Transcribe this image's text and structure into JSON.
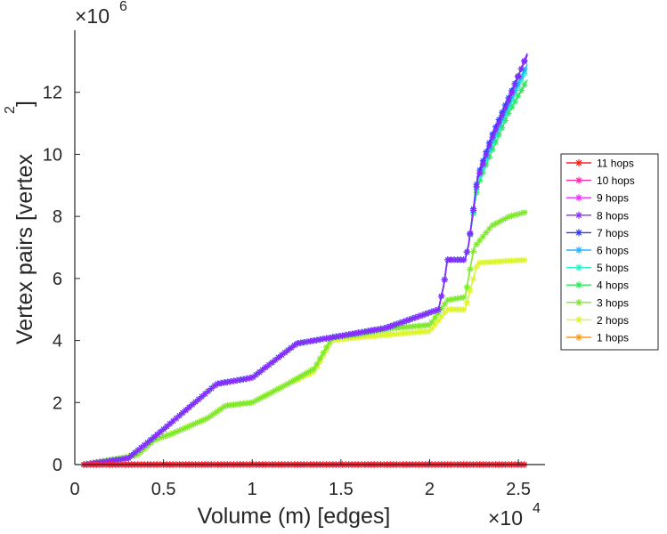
{
  "chart_data": {
    "type": "line",
    "xlabel": "Volume (m) [edges]",
    "ylabel_main": "Vertex pairs [vertex",
    "ylabel_sup": "2",
    "ylabel_close": "]",
    "x_multiplier": "×10",
    "x_multiplier_exp": "4",
    "y_multiplier": "×10",
    "y_multiplier_exp": "6",
    "xlim": [
      0,
      2.65
    ],
    "ylim": [
      0,
      14
    ],
    "xticks": [
      0,
      0.5,
      1,
      1.5,
      2,
      2.5
    ],
    "xtick_labels": [
      "0",
      "0.5",
      "1",
      "1.5",
      "2",
      "2.5"
    ],
    "yticks": [
      0,
      2,
      4,
      6,
      8,
      10,
      12
    ],
    "ytick_labels": [
      "0",
      "2",
      "4",
      "6",
      "8",
      "10",
      "12"
    ],
    "series": [
      {
        "name": "11 hops",
        "color": "#ff1f1f",
        "points": [
          [
            0.05,
            0
          ],
          [
            2.55,
            0
          ]
        ]
      },
      {
        "name": "10 hops",
        "color": "#ff2da6",
        "points": [
          [
            0.05,
            0
          ],
          [
            2.55,
            0
          ]
        ]
      },
      {
        "name": "9 hops",
        "color": "#ee2bff",
        "points": [
          [
            0.05,
            0
          ],
          [
            2.55,
            0
          ]
        ]
      },
      {
        "name": "8 hops",
        "color": "#8a2bff",
        "points": [
          [
            0.05,
            0
          ],
          [
            0.3,
            0.2
          ],
          [
            0.45,
            0.9
          ],
          [
            0.8,
            2.6
          ],
          [
            1.0,
            2.8
          ],
          [
            1.25,
            3.9
          ],
          [
            1.45,
            4.1
          ],
          [
            1.75,
            4.4
          ],
          [
            1.95,
            4.8
          ],
          [
            2.05,
            5.0
          ],
          [
            2.08,
            5.8
          ],
          [
            2.1,
            6.6
          ],
          [
            2.2,
            6.6
          ],
          [
            2.22,
            7.1
          ],
          [
            2.27,
            9.2
          ],
          [
            2.35,
            10.5
          ],
          [
            2.45,
            11.8
          ],
          [
            2.55,
            13.25
          ]
        ]
      },
      {
        "name": "7 hops",
        "color": "#2b3bff",
        "points": [
          [
            0.05,
            0
          ],
          [
            0.3,
            0.2
          ],
          [
            0.45,
            0.9
          ],
          [
            0.8,
            2.6
          ],
          [
            1.0,
            2.8
          ],
          [
            1.25,
            3.9
          ],
          [
            1.45,
            4.1
          ],
          [
            1.75,
            4.4
          ],
          [
            1.95,
            4.8
          ],
          [
            2.05,
            5.0
          ],
          [
            2.08,
            5.8
          ],
          [
            2.1,
            6.6
          ],
          [
            2.2,
            6.6
          ],
          [
            2.22,
            7.1
          ],
          [
            2.27,
            9.3
          ],
          [
            2.35,
            10.6
          ],
          [
            2.45,
            11.9
          ],
          [
            2.55,
            13.2
          ]
        ]
      },
      {
        "name": "6 hops",
        "color": "#2bb3ff",
        "points": [
          [
            0.05,
            0
          ],
          [
            0.3,
            0.2
          ],
          [
            0.45,
            0.9
          ],
          [
            0.8,
            2.6
          ],
          [
            1.0,
            2.8
          ],
          [
            1.25,
            3.9
          ],
          [
            1.45,
            4.1
          ],
          [
            1.75,
            4.4
          ],
          [
            1.95,
            4.8
          ],
          [
            2.05,
            5.0
          ],
          [
            2.08,
            5.8
          ],
          [
            2.1,
            6.6
          ],
          [
            2.2,
            6.6
          ],
          [
            2.22,
            7.1
          ],
          [
            2.27,
            9.2
          ],
          [
            2.35,
            10.4
          ],
          [
            2.45,
            11.7
          ],
          [
            2.55,
            12.9
          ]
        ]
      },
      {
        "name": "5 hops",
        "color": "#2bf2c4",
        "points": [
          [
            0.05,
            0
          ],
          [
            0.3,
            0.2
          ],
          [
            0.45,
            0.9
          ],
          [
            0.8,
            2.6
          ],
          [
            1.0,
            2.8
          ],
          [
            1.25,
            3.9
          ],
          [
            1.45,
            4.1
          ],
          [
            1.75,
            4.4
          ],
          [
            1.95,
            4.8
          ],
          [
            2.05,
            5.0
          ],
          [
            2.08,
            5.8
          ],
          [
            2.1,
            6.6
          ],
          [
            2.2,
            6.6
          ],
          [
            2.22,
            7.1
          ],
          [
            2.27,
            9.1
          ],
          [
            2.35,
            10.3
          ],
          [
            2.45,
            11.6
          ],
          [
            2.55,
            12.8
          ]
        ]
      },
      {
        "name": "4 hops",
        "color": "#2ee85a",
        "points": [
          [
            0.05,
            0
          ],
          [
            0.3,
            0.2
          ],
          [
            0.45,
            0.9
          ],
          [
            0.8,
            2.6
          ],
          [
            1.0,
            2.8
          ],
          [
            1.25,
            3.9
          ],
          [
            1.45,
            4.1
          ],
          [
            1.75,
            4.4
          ],
          [
            1.95,
            4.8
          ],
          [
            2.05,
            5.0
          ],
          [
            2.08,
            5.8
          ],
          [
            2.1,
            6.6
          ],
          [
            2.2,
            6.6
          ],
          [
            2.22,
            7.1
          ],
          [
            2.27,
            9.0
          ],
          [
            2.35,
            10.1
          ],
          [
            2.45,
            11.4
          ],
          [
            2.55,
            12.4
          ]
        ]
      },
      {
        "name": "3 hops",
        "color": "#7ee82b",
        "points": [
          [
            0.05,
            0
          ],
          [
            0.35,
            0.3
          ],
          [
            0.45,
            0.8
          ],
          [
            0.55,
            1.0
          ],
          [
            0.75,
            1.5
          ],
          [
            0.85,
            1.9
          ],
          [
            1.0,
            2.0
          ],
          [
            1.1,
            2.3
          ],
          [
            1.2,
            2.6
          ],
          [
            1.35,
            3.1
          ],
          [
            1.45,
            4.1
          ],
          [
            1.6,
            4.2
          ],
          [
            1.8,
            4.4
          ],
          [
            2.0,
            4.5
          ],
          [
            2.1,
            5.3
          ],
          [
            2.2,
            5.4
          ],
          [
            2.25,
            7.0
          ],
          [
            2.35,
            7.7
          ],
          [
            2.45,
            8.0
          ],
          [
            2.55,
            8.15
          ]
        ]
      },
      {
        "name": "2 hops",
        "color": "#ddf52b",
        "points": [
          [
            0.05,
            0
          ],
          [
            0.35,
            0.3
          ],
          [
            0.45,
            0.8
          ],
          [
            0.55,
            1.0
          ],
          [
            0.75,
            1.5
          ],
          [
            0.85,
            1.9
          ],
          [
            1.0,
            2.0
          ],
          [
            1.1,
            2.3
          ],
          [
            1.2,
            2.6
          ],
          [
            1.35,
            3.0
          ],
          [
            1.45,
            4.0
          ],
          [
            1.6,
            4.1
          ],
          [
            1.8,
            4.2
          ],
          [
            2.0,
            4.3
          ],
          [
            2.1,
            5.0
          ],
          [
            2.2,
            5.0
          ],
          [
            2.27,
            6.5
          ],
          [
            2.4,
            6.55
          ],
          [
            2.55,
            6.6
          ]
        ]
      },
      {
        "name": "1 hops",
        "color": "#ff9a1f",
        "points": [
          [
            0.05,
            0
          ],
          [
            2.55,
            0
          ]
        ]
      }
    ]
  }
}
